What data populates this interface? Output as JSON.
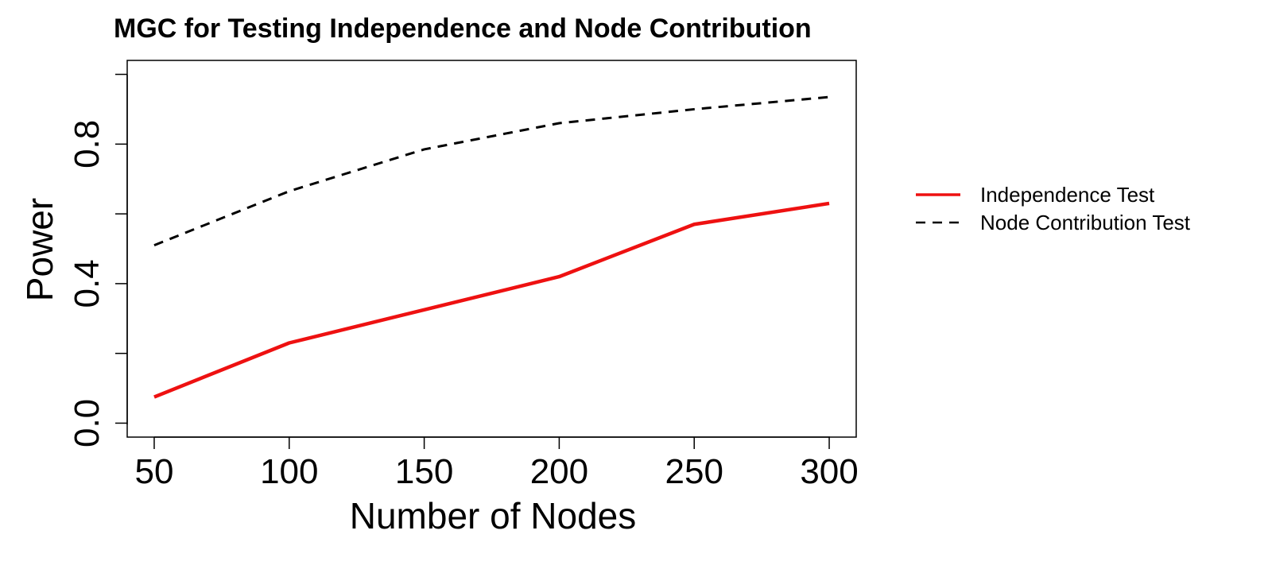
{
  "chart_data": {
    "type": "line",
    "title": "MGC for Testing Independence and Node Contribution",
    "xlabel": "Number of Nodes",
    "ylabel": "Power",
    "x": [
      50,
      100,
      150,
      200,
      250,
      300
    ],
    "xticks": [
      "50",
      "100",
      "150",
      "200",
      "250",
      "300"
    ],
    "yticks": [
      0.0,
      0.2,
      0.4,
      0.6,
      0.8,
      1.0
    ],
    "yticklabels": [
      "0.0",
      "",
      "0.4",
      "",
      "0.8",
      ""
    ],
    "xlim": [
      40,
      310
    ],
    "ylim": [
      -0.04,
      1.04
    ],
    "grid": false,
    "legend_position": "right",
    "series": [
      {
        "name": "Independence Test",
        "values": [
          0.075,
          0.23,
          0.325,
          0.42,
          0.57,
          0.63
        ],
        "color": "#ee1111",
        "style": "solid"
      },
      {
        "name": "Node Contribution Test",
        "values": [
          0.51,
          0.665,
          0.785,
          0.86,
          0.9,
          0.935
        ],
        "color": "#000000",
        "style": "dashed"
      }
    ]
  }
}
